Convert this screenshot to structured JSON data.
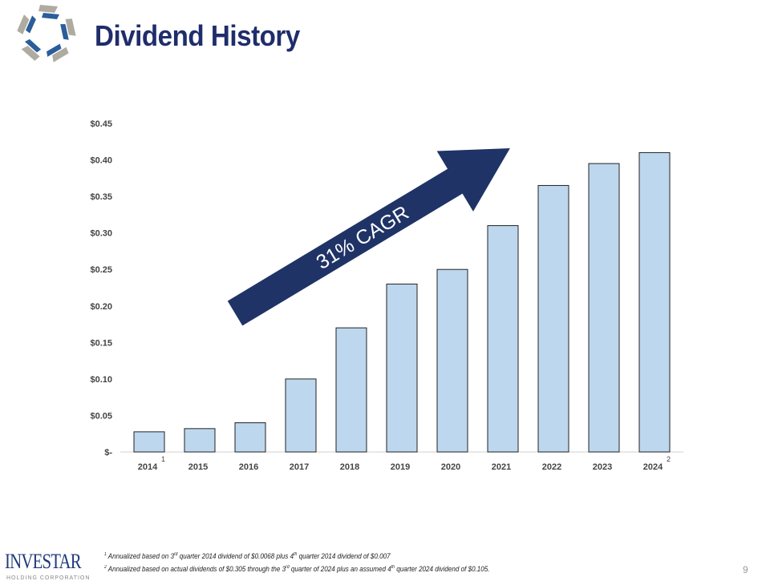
{
  "header": {
    "title": "Dividend History"
  },
  "chart_data": {
    "type": "bar",
    "categories": [
      "2014",
      "2015",
      "2016",
      "2017",
      "2018",
      "2019",
      "2020",
      "2021",
      "2022",
      "2023",
      "2024"
    ],
    "category_superscripts": {
      "2014": "1",
      "2024": "2"
    },
    "values": [
      0.0276,
      0.032,
      0.04,
      0.1,
      0.17,
      0.23,
      0.25,
      0.31,
      0.365,
      0.395,
      0.41
    ],
    "ylim": [
      0,
      0.45
    ],
    "yticks": [
      0,
      0.05,
      0.1,
      0.15,
      0.2,
      0.25,
      0.3,
      0.35,
      0.4,
      0.45
    ],
    "ytick_labels": [
      "$-",
      "$0.05",
      "$0.10",
      "$0.15",
      "$0.20",
      "$0.25",
      "$0.30",
      "$0.35",
      "$0.40",
      "$0.45"
    ],
    "xlabel": "",
    "ylabel": "",
    "grid": false,
    "annotation": "31% CAGR",
    "bar_color": "#bdd7ee",
    "arrow_color": "#1f3366"
  },
  "footnotes": [
    {
      "num": "1",
      "pre": "Annualized based on 3",
      "sup1": "rd",
      "mid": " quarter 2014 dividend of $0.0068 plus 4",
      "sup2": "th",
      "post": " quarter 2014 dividend of $0.007"
    },
    {
      "num": "2",
      "pre": "Annualized based on actual dividends of $0.305 through the 3",
      "sup1": "rd",
      "mid": " quarter of 2024 plus an assumed 4",
      "sup2": "th",
      "post": " quarter 2024 dividend of $0.105."
    }
  ],
  "footer": {
    "brand": "INVESTAR",
    "brand_sub": "HOLDING CORPORATION",
    "page_number": "9"
  }
}
